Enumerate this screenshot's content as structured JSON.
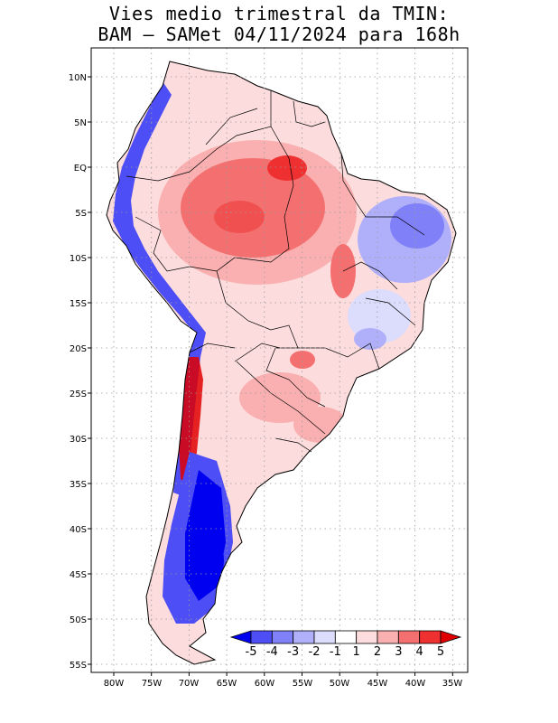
{
  "title": {
    "line1": "Vies medio trimestral da TMIN:",
    "line2": "BAM – SAMet 04/11/2024  para 168h"
  },
  "axes": {
    "lat_labels": [
      "10N",
      "5N",
      "EQ",
      "5S",
      "10S",
      "15S",
      "20S",
      "25S",
      "30S",
      "35S",
      "40S",
      "45S",
      "50S",
      "55S"
    ],
    "lon_labels": [
      "80W",
      "75W",
      "70W",
      "65W",
      "60W",
      "55W",
      "50W",
      "45W",
      "40W",
      "35W"
    ],
    "lat_range": [
      -56,
      13
    ],
    "lon_range": [
      -83,
      -35
    ],
    "grid": true,
    "grid_style": "dotted"
  },
  "colorbar": {
    "labels": [
      "-5",
      "-4",
      "-3",
      "-2",
      "-1",
      "1",
      "2",
      "3",
      "4",
      "5"
    ],
    "colors": [
      "#0000f0",
      "#4e4ef6",
      "#8080f8",
      "#b0b0fa",
      "#dcdcfc",
      "#ffffff",
      "#fcdcdc",
      "#fab0b0",
      "#f47070",
      "#ee3030",
      "#e00000"
    ],
    "placement": "bottom-right inside map"
  },
  "map": {
    "variable": "TMIN bias",
    "land_fill": "#ffffff",
    "coastline_color": "#000000"
  }
}
